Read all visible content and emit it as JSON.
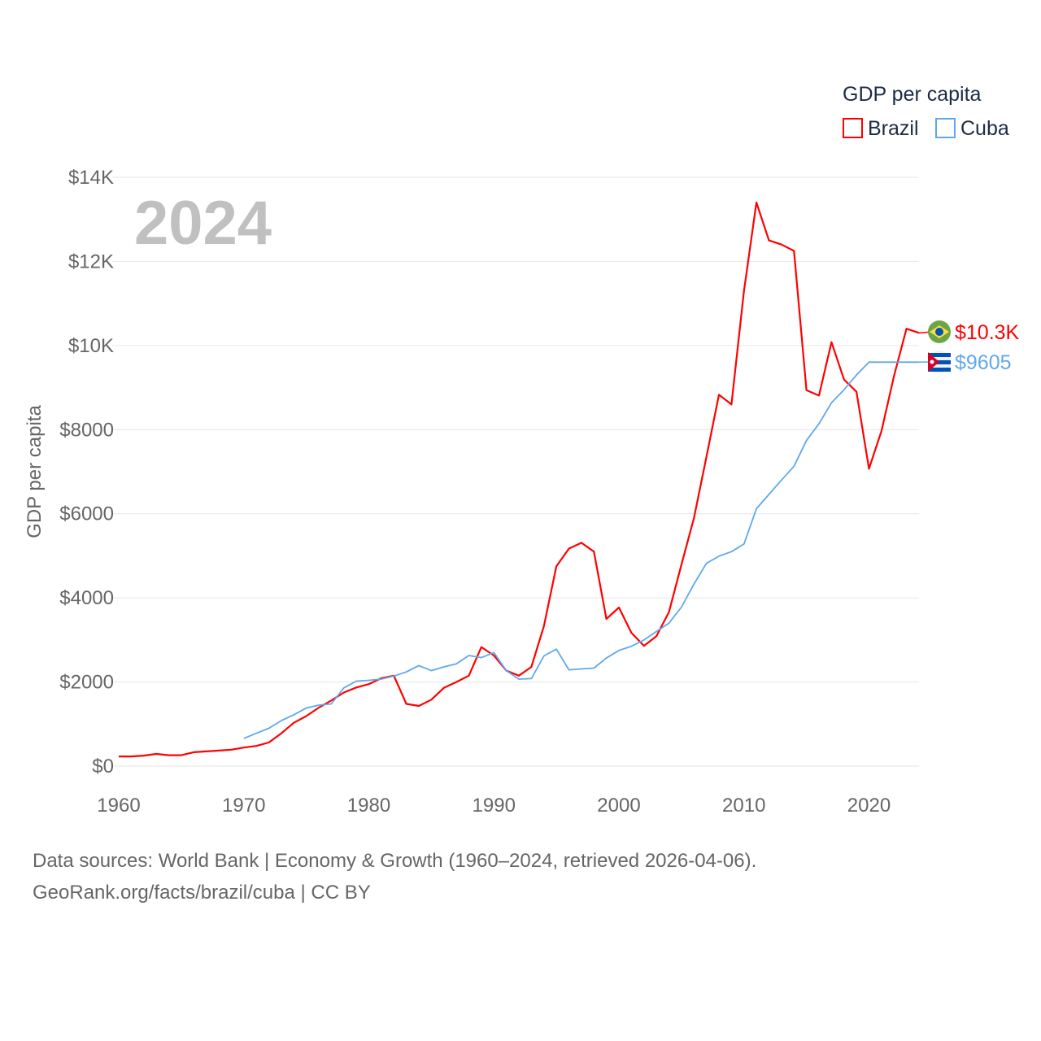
{
  "chart_data": {
    "type": "line",
    "title": "",
    "year_label": "2024",
    "ylabel": "GDP per capita",
    "xlabel": "",
    "xlim": [
      1960,
      2024
    ],
    "ylim": [
      0,
      14000
    ],
    "grid": true,
    "legend": {
      "title": "GDP per capita",
      "placement": "top-right"
    },
    "x_ticks": [
      1960,
      1970,
      1980,
      1990,
      2000,
      2010,
      2020
    ],
    "x_tick_labels": [
      "1960",
      "1970",
      "1980",
      "1990",
      "2000",
      "2010",
      "2020"
    ],
    "y_ticks": [
      0,
      2000,
      4000,
      6000,
      8000,
      10000,
      12000,
      14000
    ],
    "y_tick_labels": [
      "$0",
      "$2000",
      "$4000",
      "$6000",
      "$8000",
      "$10K",
      "$12K",
      "$14K"
    ],
    "series": [
      {
        "name": "Brazil",
        "color": "#ff0000",
        "end_label": "$10.3K",
        "flag": "brazil-flag",
        "start_year": 1960,
        "values": [
          230,
          230,
          250,
          290,
          260,
          260,
          330,
          350,
          370,
          390,
          440,
          480,
          560,
          780,
          1030,
          1190,
          1390,
          1560,
          1750,
          1870,
          1950,
          2090,
          2150,
          1480,
          1430,
          1580,
          1860,
          2000,
          2150,
          2830,
          2630,
          2270,
          2150,
          2360,
          3330,
          4750,
          5170,
          5310,
          5100,
          3500,
          3770,
          3170,
          2860,
          3090,
          3660,
          4790,
          5900,
          7350,
          8830,
          8600,
          11300,
          13400,
          12500,
          12400,
          12250,
          8940,
          8810,
          10080,
          9190,
          8900,
          7070,
          7970,
          9280,
          10400,
          10300
        ]
      },
      {
        "name": "Cuba",
        "color": "#5fa8ec",
        "end_label": "$9605",
        "flag": "cuba-flag",
        "start_year": 1970,
        "values": [
          660,
          780,
          900,
          1080,
          1220,
          1380,
          1450,
          1480,
          1860,
          2020,
          2040,
          2070,
          2140,
          2240,
          2390,
          2270,
          2360,
          2430,
          2630,
          2580,
          2700,
          2270,
          2070,
          2080,
          2620,
          2780,
          2290,
          2310,
          2330,
          2570,
          2750,
          2850,
          3000,
          3200,
          3400,
          3780,
          4330,
          4820,
          4990,
          5100,
          5280,
          6120,
          6460,
          6800,
          7130,
          7740,
          8140,
          8640,
          8950,
          9300,
          9605,
          9605,
          9605,
          9605,
          9605
        ]
      }
    ]
  },
  "footer": {
    "line1": "Data sources: World Bank | Economy & Growth (1960–2024, retrieved 2026-04-06).",
    "line2": "GeoRank.org/facts/brazil/cuba | CC BY"
  }
}
